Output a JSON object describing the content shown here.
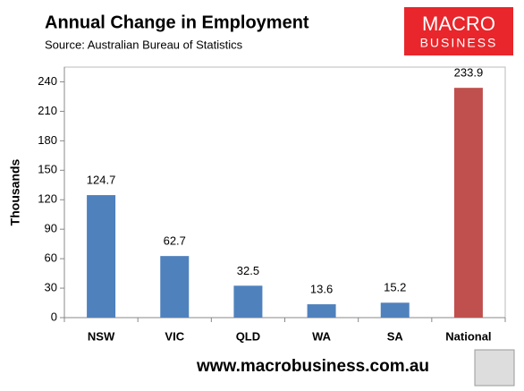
{
  "chart_data": {
    "type": "bar",
    "title": "Annual Change in Employment",
    "subtitle": "Source: Australian Bureau of Statistics",
    "y_label": "Thousands",
    "footer": "www.macrobusiness.com.au",
    "logo": [
      "MACRO",
      "BUSINESS"
    ],
    "categories": [
      "NSW",
      "VIC",
      "QLD",
      "WA",
      "SA",
      "National"
    ],
    "values": [
      124.7,
      62.7,
      32.5,
      13.6,
      15.2,
      233.9
    ],
    "colors": [
      "#4f81bd",
      "#4f81bd",
      "#4f81bd",
      "#4f81bd",
      "#4f81bd",
      "#c0504d"
    ],
    "ylim": [
      0,
      255
    ],
    "yticks": [
      0,
      30,
      60,
      90,
      120,
      150,
      180,
      210,
      240
    ],
    "grid": false
  }
}
